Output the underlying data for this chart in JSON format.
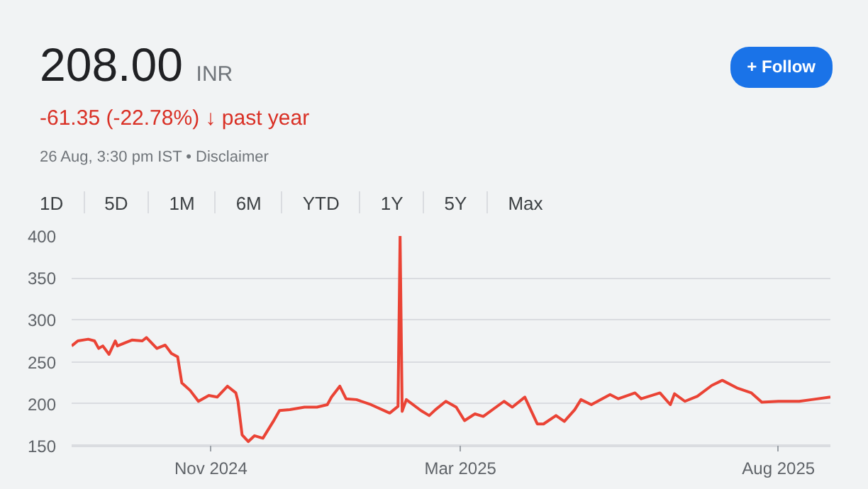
{
  "chart_data": {
    "type": "line",
    "title": "208.00",
    "subtitle": "-61.35 (-22.78%) ↓ past year",
    "annotations": [
      "INR",
      "26 Aug, 3:30 pm IST • Disclaimer",
      "1D",
      "5D",
      "1M",
      "6M",
      "YTD",
      "1Y",
      "5Y",
      "Max",
      "+ Follow"
    ],
    "x": [
      "2024-08-26",
      "2024-08-29",
      "2024-09-03",
      "2024-09-06",
      "2024-09-08",
      "2024-09-10",
      "2024-09-13",
      "2024-09-16",
      "2024-09-17",
      "2024-09-21",
      "2024-09-24",
      "2024-09-29",
      "2024-10-01",
      "2024-10-06",
      "2024-10-10",
      "2024-10-13",
      "2024-10-16",
      "2024-10-18",
      "2024-10-22",
      "2024-10-26",
      "2024-10-31",
      "2024-11-04",
      "2024-11-09",
      "2024-11-13",
      "2024-11-14",
      "2024-11-16",
      "2024-11-19",
      "2024-11-22",
      "2024-11-26",
      "2024-12-01",
      "2024-12-04",
      "2024-12-09",
      "2024-12-16",
      "2024-12-22",
      "2024-12-27",
      "2024-12-29",
      "2025-01-02",
      "2025-01-05",
      "2025-01-10",
      "2025-01-17",
      "2025-01-26",
      "2025-01-30",
      "2025-01-31",
      "2025-02-01",
      "2025-02-03",
      "2025-02-10",
      "2025-02-14",
      "2025-02-17",
      "2025-02-22",
      "2025-02-27",
      "2025-03-03",
      "2025-03-08",
      "2025-03-12",
      "2025-03-22",
      "2025-03-26",
      "2025-04-01",
      "2025-04-07",
      "2025-04-10",
      "2025-04-16",
      "2025-04-20",
      "2025-04-25",
      "2025-04-28",
      "2025-05-03",
      "2025-05-12",
      "2025-05-16",
      "2025-05-24",
      "2025-05-27",
      "2025-06-05",
      "2025-06-10",
      "2025-06-12",
      "2025-06-17",
      "2025-06-23",
      "2025-06-30",
      "2025-07-05",
      "2025-07-12",
      "2025-07-19",
      "2025-07-24",
      "2025-08-01",
      "2025-08-11",
      "2025-08-17",
      "2025-08-26"
    ],
    "series": [
      {
        "color": "#ea4335",
        "values": [
          269,
          275,
          277,
          275,
          266,
          269,
          259,
          275,
          269,
          273,
          276,
          275,
          279,
          266,
          270,
          260,
          256,
          225,
          216,
          203,
          210,
          208,
          221,
          213,
          203,
          163,
          155,
          162,
          159,
          179,
          192,
          193,
          196,
          196,
          199,
          208,
          221,
          206,
          205,
          199,
          189,
          197,
          400,
          191,
          205,
          192,
          186,
          193,
          203,
          196,
          180,
          188,
          185,
          203,
          196,
          208,
          176,
          176,
          186,
          179,
          193,
          205,
          199,
          211,
          206,
          213,
          206,
          213,
          199,
          212,
          203,
          209,
          222,
          228,
          219,
          213,
          202,
          203,
          203,
          205,
          208
        ]
      }
    ],
    "xlim": [
      "2024-08-26",
      "2025-08-26"
    ],
    "ylim": [
      150,
      400
    ],
    "xticks": [
      {
        "value": "2024-11-01",
        "label": "Nov 2024"
      },
      {
        "value": "2025-03-01",
        "label": "Mar 2025"
      },
      {
        "value": "2025-08-01",
        "label": "Aug 2025"
      }
    ],
    "yticks": [
      150,
      200,
      250,
      300,
      350,
      400
    ],
    "grid": "y",
    "line_style": "solid"
  }
}
